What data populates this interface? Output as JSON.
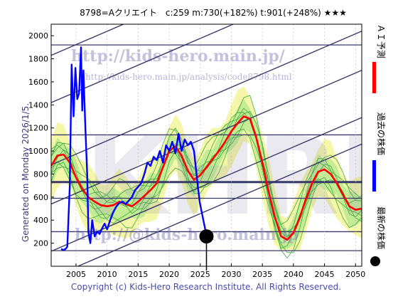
{
  "chart_data": {
    "type": "line",
    "title": "8798=Aクリエイト　c:259  m:730(+182%)  t:901(+248%)  ★★★",
    "generated_label": "Generated on Monday 2026/1/5.",
    "copyright": "Copyright (c) Kids-Hero Research Institute. All Rights Reserved.",
    "watermarks": {
      "url_main": "http://kids-hero.main.jp/",
      "url_analysis": "http://kids-hero.main.jp/analysis/code8798.html",
      "url_bottom": "http://@kids-hero.main.jp",
      "big": "KHRI"
    },
    "xlim": [
      2001,
      2051
    ],
    "ylim": [
      0,
      2100
    ],
    "x_ticks": [
      2005,
      2010,
      2015,
      2020,
      2025,
      2030,
      2035,
      2040,
      2045,
      2050
    ],
    "y_ticks": [
      200,
      400,
      600,
      800,
      1000,
      1200,
      1400,
      1600,
      1800,
      2000
    ],
    "legend": [
      {
        "label": "ＡＩ予測",
        "color": "#ff0000"
      },
      {
        "label": "過去の株価",
        "color": "#0000ff"
      },
      {
        "label": "最新の株価",
        "color": "#000000"
      }
    ],
    "horizontal_levels": [
      135,
      300,
      590,
      730,
      1140,
      1920
    ],
    "trend_lines": [
      {
        "x": [
          2001,
          2051
        ],
        "y": [
          -100,
          1060
        ]
      },
      {
        "x": [
          2001,
          2051
        ],
        "y": [
          130,
          1290
        ]
      },
      {
        "x": [
          2001,
          2051
        ],
        "y": [
          540,
          1700
        ]
      },
      {
        "x": [
          2001,
          2051
        ],
        "y": [
          880,
          2040
        ]
      },
      {
        "x": [
          2001,
          2051
        ],
        "y": [
          1420,
          2580
        ]
      },
      {
        "x": [
          2001,
          2051
        ],
        "y": [
          1830,
          2990
        ]
      }
    ],
    "latest_point": {
      "x": 2026.0,
      "y": 259
    },
    "series": [
      {
        "name": "ＡＩ予測",
        "color": "#ff0000",
        "x": [
          2001,
          2002,
          2003,
          2004,
          2005,
          2006,
          2007,
          2008,
          2009,
          2010,
          2011,
          2012,
          2013,
          2014,
          2015,
          2016,
          2017,
          2018,
          2019,
          2020,
          2021,
          2022,
          2023,
          2024,
          2025,
          2026,
          2027,
          2028,
          2029,
          2030,
          2031,
          2032,
          2033,
          2034,
          2035,
          2036,
          2037,
          2038,
          2039,
          2040,
          2041,
          2042,
          2043,
          2044,
          2045,
          2046,
          2047,
          2048,
          2049,
          2050,
          2051
        ],
        "values": [
          870,
          960,
          970,
          900,
          770,
          670,
          600,
          560,
          530,
          520,
          530,
          560,
          540,
          520,
          560,
          610,
          660,
          720,
          860,
          1000,
          1040,
          960,
          830,
          750,
          790,
          860,
          930,
          1000,
          1080,
          1170,
          1240,
          1300,
          1280,
          1120,
          900,
          650,
          430,
          260,
          230,
          290,
          420,
          580,
          720,
          820,
          840,
          800,
          720,
          620,
          520,
          490,
          500
        ]
      },
      {
        "name": "過去の株価",
        "color": "#0000ff",
        "x": [
          2002.6,
          2003.0,
          2003.3,
          2003.6,
          2004.0,
          2004.3,
          2004.6,
          2004.9,
          2005.2,
          2005.5,
          2005.8,
          2006.0,
          2006.2,
          2006.5,
          2006.8,
          2007.0,
          2007.3,
          2007.6,
          2008.0,
          2008.4,
          2008.8,
          2009.2,
          2009.6,
          2010.0,
          2010.5,
          2011.0,
          2011.5,
          2012.0,
          2012.5,
          2013.0,
          2013.5,
          2014.0,
          2014.5,
          2015.0,
          2015.5,
          2016.0,
          2016.5,
          2017.0,
          2017.5,
          2018.0,
          2018.5,
          2019.0,
          2019.5,
          2020.0,
          2020.5,
          2021.0,
          2021.5,
          2022.0,
          2022.5,
          2023.0,
          2023.5,
          2024.0,
          2024.3,
          2024.6,
          2024.9,
          2025.2,
          2025.5,
          2025.8,
          2026.0
        ],
        "values": [
          150,
          140,
          150,
          170,
          700,
          1750,
          1300,
          1720,
          1450,
          1500,
          1900,
          1350,
          1700,
          1200,
          800,
          300,
          200,
          400,
          260,
          300,
          280,
          330,
          370,
          320,
          400,
          470,
          520,
          550,
          560,
          540,
          570,
          600,
          660,
          690,
          720,
          800,
          900,
          870,
          950,
          920,
          1000,
          900,
          1050,
          1000,
          1080,
          980,
          1150,
          1000,
          1100,
          1050,
          1080,
          1000,
          850,
          700,
          560,
          480,
          400,
          320,
          259
        ]
      }
    ],
    "band_note": "green bands and light-yellow fill: AI prediction envelope (no numeric labels)"
  }
}
